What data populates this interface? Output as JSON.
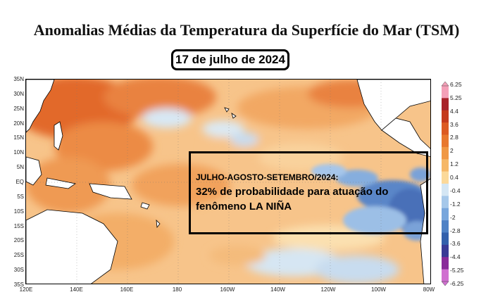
{
  "title": "Anomalias Médias da Temperatura da Superfície do Mar (TSM)",
  "date": "17 de julho de 2024",
  "forecast": {
    "period": "JULHO-AGOSTO-SETEMBRO/2024:",
    "line1": "32% de probabilidade para atuação do",
    "line2": "fenômeno LA NIÑA"
  },
  "map": {
    "lat_labels": [
      "35N",
      "30N",
      "25N",
      "20N",
      "15N",
      "10N",
      "5N",
      "EQ",
      "5S",
      "10S",
      "15S",
      "20S",
      "25S",
      "30S",
      "35S"
    ],
    "lon_labels": [
      "120E",
      "140E",
      "160E",
      "180",
      "160W",
      "140W",
      "120W",
      "100W",
      "80W"
    ],
    "colorbar": {
      "labels": [
        "6.25",
        "5.25",
        "4.4",
        "3.6",
        "2.8",
        "2",
        "1.2",
        "0.4",
        "-0.4",
        "-1.2",
        "-2",
        "-2.8",
        "-3.6",
        "-4.4",
        "-5.25",
        "-6.25"
      ],
      "colors": [
        "#f4a0b8",
        "#a8222a",
        "#c43a1c",
        "#dc5a22",
        "#e8782e",
        "#f09844",
        "#f6b868",
        "#fbd99a",
        "#d4e6f4",
        "#a6c8ea",
        "#78a6dc",
        "#4f82c6",
        "#3360ac",
        "#3a3a96",
        "#8a2a9a",
        "#d070d0"
      ]
    }
  }
}
